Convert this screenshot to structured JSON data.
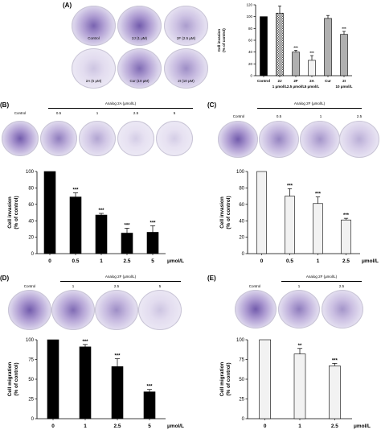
{
  "panels": {
    "A": {
      "label": "(A)",
      "dishes": [
        "Control",
        "2J (1 μM)",
        "2F (2.5 μM)",
        "2A (5 μM)",
        "Cur (10 μM)",
        "2I (10 μM)"
      ]
    },
    "B": {
      "label": "(B)",
      "header": "Analog 2A (μmol/L)",
      "dish_labels": [
        "Control",
        "0.5",
        "1",
        "2.5",
        "5"
      ]
    },
    "C": {
      "label": "(C)",
      "header": "Analog 2F (μmol/L)",
      "dish_labels": [
        "Control",
        "0.5",
        "1",
        "2.5"
      ]
    },
    "D": {
      "label": "(D)",
      "header": "Analog 2F (μmol/L)",
      "dish_labels": [
        "Control",
        "1",
        "2.5",
        "5"
      ]
    },
    "E": {
      "label": "(E)",
      "header": "Analog 2F (μmol/L)",
      "dish_labels": [
        "Control",
        "1",
        "2.5"
      ]
    }
  },
  "colors": {
    "dish_bg": "#d8d4e6",
    "stain": "#5a3f9e",
    "black_bar": "#000000",
    "gray_bar": "#b0b0b0",
    "white_bar": "#f2f2f2"
  },
  "chart_data": [
    {
      "id": "A",
      "type": "bar",
      "ylabel": "Cell invasion\n(% of control)",
      "ylim": [
        0,
        120
      ],
      "yticks": [
        0,
        20,
        40,
        60,
        80,
        100,
        120
      ],
      "categories": [
        "Control",
        "2J",
        "2F",
        "2A",
        "Cur",
        "2I"
      ],
      "values": [
        100,
        106,
        40,
        26,
        97,
        70
      ],
      "errors": [
        0,
        12,
        3,
        8,
        5,
        5
      ],
      "stars": [
        "",
        "",
        "***",
        "***",
        "",
        "***"
      ],
      "bar_styles": [
        "black",
        "checker",
        "gray",
        "white",
        "gray",
        "gray"
      ],
      "xlabel_rows": [
        [
          "Control",
          "2J",
          "2F",
          "2A",
          "Cur",
          "2I"
        ],
        [
          "",
          "1 μmol/L",
          "2.5 μmol/L",
          "5 μmol/L",
          "",
          "10 μmol/L"
        ]
      ]
    },
    {
      "id": "B",
      "type": "bar",
      "ylabel": "Cell invasion\n(% of control)",
      "ylim": [
        0,
        100
      ],
      "yticks": [
        0,
        20,
        40,
        60,
        80,
        100
      ],
      "categories": [
        "0",
        "0.5",
        "1",
        "2.5",
        "5"
      ],
      "values": [
        100,
        69,
        47,
        25,
        26
      ],
      "errors": [
        0,
        5,
        2,
        6,
        8
      ],
      "stars": [
        "",
        "***",
        "***",
        "***",
        "***"
      ],
      "unit": "μmol/L",
      "color": "black"
    },
    {
      "id": "C",
      "type": "bar",
      "ylabel": "Cell invasion\n(% of control)",
      "ylim": [
        0,
        100
      ],
      "yticks": [
        0,
        20,
        40,
        60,
        80,
        100
      ],
      "categories": [
        "0",
        "0.5",
        "1",
        "2.5"
      ],
      "values": [
        100,
        70,
        61,
        41
      ],
      "errors": [
        0,
        9,
        8,
        2
      ],
      "stars": [
        "",
        "***",
        "***",
        "***"
      ],
      "unit": "μmol/L",
      "color": "white"
    },
    {
      "id": "D",
      "type": "bar",
      "ylabel": "Cell migration\n(% of control)",
      "ylim": [
        0,
        100
      ],
      "yticks": [
        0,
        25,
        50,
        75,
        100
      ],
      "categories": [
        "0",
        "1",
        "2.5",
        "5"
      ],
      "values": [
        100,
        91,
        66,
        34
      ],
      "errors": [
        0,
        3,
        10,
        3
      ],
      "stars": [
        "",
        "***",
        "***",
        "***"
      ],
      "unit": "μmol/L",
      "color": "black"
    },
    {
      "id": "E",
      "type": "bar",
      "ylabel": "Cell migration\n(% of control)",
      "ylim": [
        0,
        100
      ],
      "yticks": [
        0,
        25,
        50,
        75,
        100
      ],
      "categories": [
        "0",
        "1",
        "2.5"
      ],
      "values": [
        100,
        82,
        67
      ],
      "errors": [
        0,
        7,
        3
      ],
      "stars": [
        "",
        "**",
        "***"
      ],
      "unit": "μmol/L",
      "color": "white"
    }
  ]
}
